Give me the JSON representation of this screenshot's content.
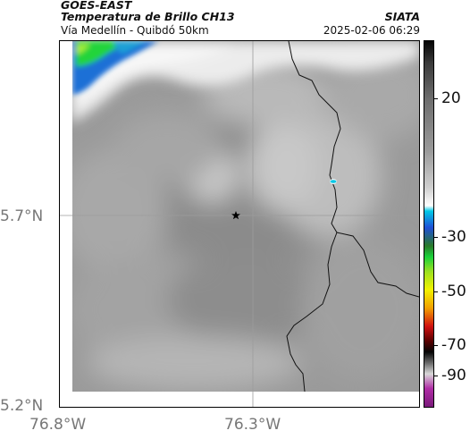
{
  "header": {
    "left_line1": "GOES-EAST",
    "left_line2": "Temperatura de Brillo CH13",
    "left_line3": "Vía Medellín - Quibdó 50km",
    "right_line1": "SIATA",
    "right_line2": "2025-02-06 06:29"
  },
  "axes": {
    "lat_labels": [
      "5.7°N",
      "5.2°N"
    ],
    "lon_labels": [
      "76.8°W",
      "76.3°W"
    ]
  },
  "colorbar": {
    "ticks": [
      "20",
      "-30",
      "-50",
      "-70",
      "-90"
    ],
    "colors": {
      "gray_warm": "#6e6e6e",
      "gray_light": "#d8d8d8",
      "white_band": "#ffffff",
      "cyan": "#00c8e6",
      "blue": "#1f4fd6",
      "green": "#19d13a",
      "yellow": "#f2f200",
      "red": "#d01010",
      "black": "#050505",
      "magenta": "#b02da6"
    }
  },
  "map": {
    "marker": "star-icon",
    "colors": {
      "background": "#9a9a9a",
      "cloud_cold_green": "#22d43a",
      "cloud_cold_blue": "#1f6fd6",
      "coast_line": "#000000",
      "grid_line": "#9c9c9c"
    }
  }
}
